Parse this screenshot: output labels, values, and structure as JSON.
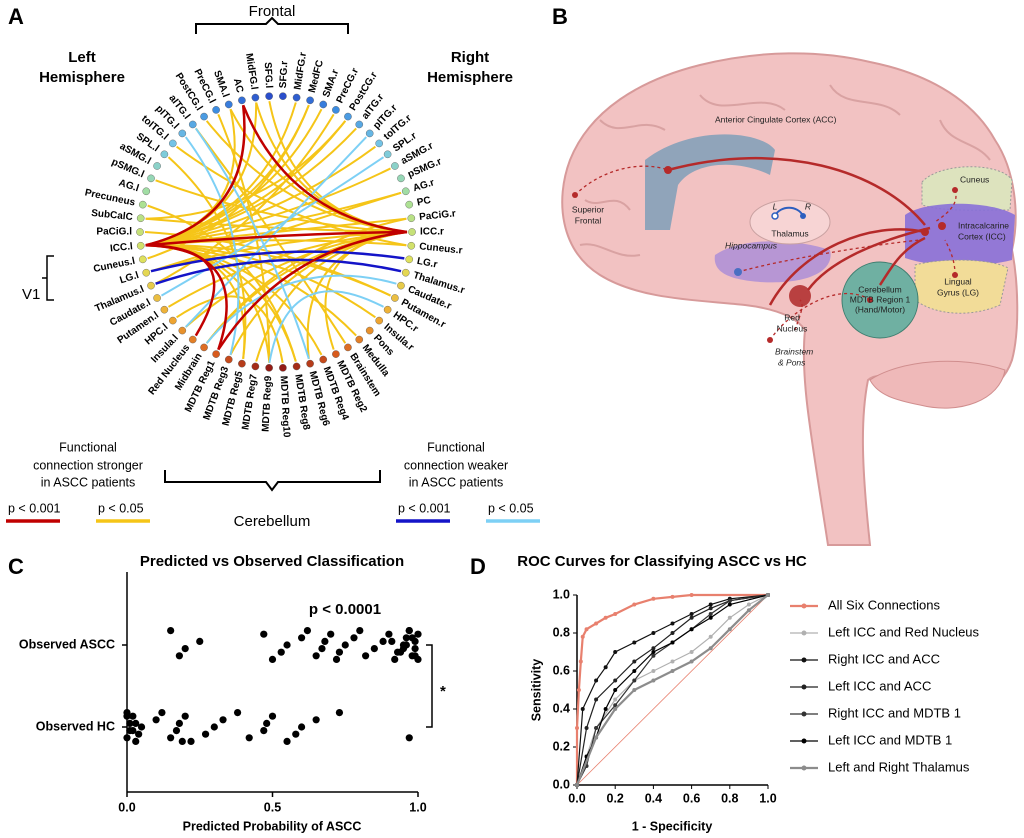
{
  "panel_a": {
    "letter": "A",
    "frontal": "Frontal",
    "cerebellum": "Cerebellum",
    "left_hemisphere": [
      "Left",
      "Hemisphere"
    ],
    "right_hemisphere": [
      "Right",
      "Hemisphere"
    ],
    "v1": "V1",
    "nodes": [
      "SFG.r",
      "MidFG.r",
      "MedFC",
      "SMA.r",
      "PreCG.r",
      "PostCG.r",
      "aITG.r",
      "pITG.r",
      "toITG.r",
      "SPL.r",
      "aSMG.r",
      "pSMG.r",
      "AG.r",
      "PC",
      "PaCiG.r",
      "ICC.r",
      "Cuneus.r",
      "LG.r",
      "Thalamus.r",
      "Caudate.r",
      "Putamen.r",
      "HPC.r",
      "Insula.r",
      "Pons",
      "Medulla",
      "Brainstem",
      "MDTB Reg2",
      "MDTB Reg4",
      "MDTB Reg6",
      "MDTB Reg8",
      "MDTB Reg10",
      "MDTB Reg9",
      "MDTB Reg7",
      "MDTB Reg5",
      "MDTB Reg3",
      "MDTB Reg1",
      "Midbrain",
      "Red Nucleus",
      "Insula.l",
      "HPC.l",
      "Putamen.l",
      "Caudate.l",
      "Thalamus.l",
      "LG.l",
      "Cuneus.l",
      "ICC.l",
      "PaCiG.l",
      "SubCalC",
      "Precuneus",
      "AG.l",
      "pSMG.l",
      "aSMG.l",
      "SPL.l",
      "toITG.l",
      "pITG.l",
      "aITG.l",
      "PostCG.l",
      "PreCG.l",
      "SMA.l",
      "AC",
      "MidFG.l",
      "SFG.l"
    ],
    "legend_stronger": {
      "text": [
        "Functional",
        "connection stronger",
        "in ASCC patients"
      ],
      "items": [
        {
          "label": "p < 0.001",
          "color": "#c00000"
        },
        {
          "label": "p < 0.05",
          "color": "#f5c518"
        }
      ]
    },
    "legend_weaker": {
      "text": [
        "Functional",
        "connection weaker",
        "in ASCC patients"
      ],
      "items": [
        {
          "label": "p < 0.001",
          "color": "#1414c8"
        },
        {
          "label": "p < 0.05",
          "color": "#7dd0f5"
        }
      ]
    }
  },
  "panel_b": {
    "letter": "B",
    "labels": {
      "acc": "Anterior Cingulate Cortex (ACC)",
      "superior_frontal": [
        "Superior",
        "Frontal"
      ],
      "thalamus": "Thalamus",
      "l": "L",
      "r": "R",
      "hippocampus": "Hippocampus",
      "cuneus": "Cuneus",
      "icc": [
        "Intracalcarine",
        "Cortex (ICC)"
      ],
      "cerebellum": [
        "Cerebellum",
        "MDTB Region 1",
        "(Hand/Motor)"
      ],
      "lg": [
        "Lingual",
        "Gyrus (LG)"
      ],
      "red_nucleus": [
        "Red",
        "Nucleus"
      ],
      "brainstem": [
        "Brainstem",
        "& Pons"
      ]
    }
  },
  "chart_data": [
    {
      "type": "scatter",
      "letter": "C",
      "title": "Predicted vs Observed Classification",
      "xlabel": "Predicted Probability of ASCC",
      "categories": [
        "Observed ASCC",
        "Observed HC"
      ],
      "color": "#000000",
      "values": [
        [
          0.15,
          0.18,
          0.2,
          0.25,
          0.47,
          0.5,
          0.53,
          0.55,
          0.6,
          0.62,
          0.65,
          0.67,
          0.68,
          0.7,
          0.72,
          0.73,
          0.75,
          0.78,
          0.8,
          0.82,
          0.85,
          0.88,
          0.9,
          0.92,
          0.93,
          0.95,
          0.96,
          0.97,
          0.98,
          0.99,
          0.99,
          1.0,
          1.0,
          0.94,
          0.96,
          0.98,
          0.97,
          0.99,
          0.95,
          0.91
        ],
        [
          0.0,
          0.0,
          0.01,
          0.01,
          0.02,
          0.03,
          0.04,
          0.05,
          0.1,
          0.12,
          0.15,
          0.17,
          0.18,
          0.2,
          0.22,
          0.27,
          0.3,
          0.33,
          0.38,
          0.42,
          0.47,
          0.48,
          0.5,
          0.55,
          0.58,
          0.6,
          0.65,
          0.73,
          0.97,
          0.02,
          0.03,
          0.0,
          0.19
        ]
      ],
      "xlim": [
        0,
        1
      ],
      "xticks": [
        {
          "value": 0,
          "label": "0.0"
        },
        0.5,
        {
          "value": 1,
          "label": "1.0"
        }
      ],
      "annotations": [
        "p < 0.0001",
        "*"
      ]
    },
    {
      "type": "line",
      "letter": "D",
      "title": "ROC Curves for Classifying ASCC vs HC",
      "xlabel": "1 - Specificity",
      "ylabel": "Sensitivity",
      "xlim": [
        0,
        1
      ],
      "ylim": [
        0,
        1
      ],
      "xticks": [
        {
          "value": 0,
          "label": "0.0"
        },
        0.2,
        0.4,
        0.6,
        0.8,
        {
          "value": 1,
          "label": "1.0"
        }
      ],
      "yticks": [
        {
          "value": 0,
          "label": "0.0"
        },
        0.2,
        0.4,
        0.6,
        0.8,
        {
          "value": 1,
          "label": "1.0"
        }
      ],
      "series": [
        {
          "name": "All Six Connections",
          "color": "#e8806e",
          "x": [
            0,
            0,
            0.01,
            0.02,
            0.03,
            0.05,
            0.1,
            0.15,
            0.2,
            0.3,
            0.4,
            0.5,
            0.6,
            1
          ],
          "values": [
            0,
            0.3,
            0.5,
            0.65,
            0.78,
            0.82,
            0.85,
            0.88,
            0.9,
            0.95,
            0.98,
            0.99,
            1,
            1
          ]
        },
        {
          "name": "Left ICC and Red Nucleus",
          "color": "#b0b0b0",
          "x": [
            0,
            0.05,
            0.1,
            0.2,
            0.3,
            0.4,
            0.5,
            0.6,
            0.7,
            0.8,
            0.9,
            1
          ],
          "values": [
            0,
            0.15,
            0.3,
            0.45,
            0.55,
            0.6,
            0.65,
            0.7,
            0.78,
            0.88,
            0.95,
            1
          ]
        },
        {
          "name": "Right ICC and ACC",
          "color": "#111111",
          "x": [
            0,
            0.03,
            0.1,
            0.15,
            0.2,
            0.3,
            0.4,
            0.5,
            0.6,
            0.7,
            0.8,
            1
          ],
          "values": [
            0,
            0.4,
            0.55,
            0.62,
            0.7,
            0.75,
            0.8,
            0.85,
            0.9,
            0.95,
            0.98,
            1
          ]
        },
        {
          "name": "Left ICC and ACC",
          "color": "#222222",
          "x": [
            0,
            0.05,
            0.1,
            0.2,
            0.3,
            0.4,
            0.5,
            0.6,
            0.7,
            0.8,
            1
          ],
          "values": [
            0,
            0.3,
            0.45,
            0.55,
            0.65,
            0.72,
            0.8,
            0.88,
            0.93,
            0.97,
            1
          ]
        },
        {
          "name": "Right ICC and MDTB 1",
          "color": "#333333",
          "x": [
            0,
            0.05,
            0.1,
            0.2,
            0.3,
            0.4,
            0.5,
            0.6,
            0.7,
            0.8,
            1
          ],
          "values": [
            0,
            0.1,
            0.3,
            0.42,
            0.55,
            0.68,
            0.75,
            0.82,
            0.9,
            0.97,
            1
          ]
        },
        {
          "name": "Left ICC and MDTB 1",
          "color": "#000000",
          "x": [
            0,
            0.05,
            0.1,
            0.15,
            0.2,
            0.3,
            0.4,
            0.5,
            0.6,
            0.7,
            0.8,
            1
          ],
          "values": [
            0,
            0.15,
            0.25,
            0.4,
            0.5,
            0.6,
            0.7,
            0.75,
            0.82,
            0.88,
            0.95,
            1
          ]
        },
        {
          "name": "Left and Right Thalamus",
          "color": "#8c8c8c",
          "x": [
            0,
            0.1,
            0.2,
            0.3,
            0.4,
            0.5,
            0.6,
            0.7,
            0.8,
            0.9,
            1
          ],
          "values": [
            0,
            0.25,
            0.4,
            0.5,
            0.55,
            0.6,
            0.65,
            0.72,
            0.82,
            0.92,
            1
          ]
        }
      ]
    }
  ]
}
